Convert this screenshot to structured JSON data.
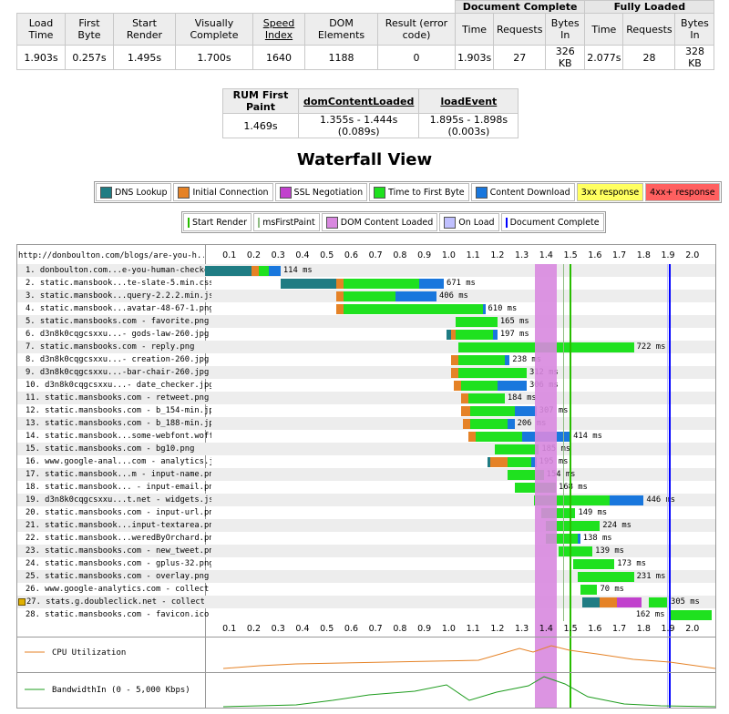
{
  "summary": {
    "group_document": "Document Complete",
    "group_fully": "Fully Loaded",
    "headers": [
      "Load Time",
      "First Byte",
      "Start Render",
      "Visually Complete",
      "Speed Index",
      "DOM Elements",
      "Result (error code)"
    ],
    "sub_headers": [
      "Time",
      "Requests",
      "Bytes In",
      "Time",
      "Requests",
      "Bytes In"
    ],
    "values": [
      "1.903s",
      "0.257s",
      "1.495s",
      "1.700s",
      "1640",
      "1188",
      "0",
      "1.903s",
      "27",
      "326 KB",
      "2.077s",
      "28",
      "328 KB"
    ]
  },
  "rum": {
    "headers": [
      "RUM First Paint",
      "domContentLoaded",
      "loadEvent"
    ],
    "values": [
      "1.469s",
      "1.355s - 1.444s (0.089s)",
      "1.895s - 1.898s (0.003s)"
    ]
  },
  "waterfall_title": "Waterfall View",
  "legend1": [
    {
      "label": "DNS Lookup",
      "color": "#1f7c83"
    },
    {
      "label": "Initial Connection",
      "color": "#e58226"
    },
    {
      "label": "SSL Negotiation",
      "color": "#c141cd"
    },
    {
      "label": "Time to First Byte",
      "color": "#1fe11f"
    },
    {
      "label": "Content Download",
      "color": "#1977dd"
    },
    {
      "label": "3xx response",
      "color": "#ffff60"
    },
    {
      "label": "4xx+ response",
      "color": "#ff6060"
    }
  ],
  "legend2": [
    {
      "label": "Start Render",
      "color": "#28bc00",
      "kind": "tick"
    },
    {
      "label": "msFirstPaint",
      "color": "#8fbc83",
      "kind": "tick"
    },
    {
      "label": "DOM Content Loaded",
      "color": "#d888df",
      "kind": "swatch"
    },
    {
      "label": "On Load",
      "color": "#c0c0ff",
      "kind": "swatch"
    },
    {
      "label": "Document Complete",
      "color": "#0000ff",
      "kind": "tick"
    }
  ],
  "page_url": "http://donboulton.com/blogs/are-you-h...",
  "axis_ticks": [
    "0.1",
    "0.2",
    "0.3",
    "0.4",
    "0.5",
    "0.6",
    "0.7",
    "0.8",
    "0.9",
    "1.0",
    "1.1",
    "1.2",
    "1.3",
    "1.4",
    "1.5",
    "1.6",
    "1.7",
    "1.8",
    "1.9",
    "2.0"
  ],
  "markers": {
    "dom_content_loaded": [
      1.355,
      1.444
    ],
    "start_render": 1.495,
    "ms_first_paint": 1.469,
    "on_load": [
      1.895,
      1.898
    ],
    "document_complete": 1.903
  },
  "requests": [
    {
      "label": "1. donboulton.com...e-you-human-checker",
      "ms": "114 ms",
      "phases": [
        [
          0.0,
          0.19,
          "#1f7c83"
        ],
        [
          0.19,
          0.22,
          "#e58226"
        ],
        [
          0.22,
          0.26,
          "#1fe11f"
        ],
        [
          0.26,
          0.31,
          "#1977dd"
        ]
      ]
    },
    {
      "label": "2. static.mansbook...te-slate-5.min.css",
      "ms": "671 ms",
      "phases": [
        [
          0.31,
          0.54,
          "#1f7c83"
        ],
        [
          0.54,
          0.57,
          "#e58226"
        ],
        [
          0.57,
          0.88,
          "#1fe11f"
        ],
        [
          0.88,
          0.98,
          "#1977dd"
        ]
      ]
    },
    {
      "label": "3. static.mansbook...query-2.2.2.min.js",
      "ms": "406 ms",
      "phases": [
        [
          0.54,
          0.57,
          "#e58226"
        ],
        [
          0.57,
          0.78,
          "#1fe11f"
        ],
        [
          0.78,
          0.95,
          "#1977dd"
        ]
      ]
    },
    {
      "label": "4. static.mansbook...avatar-48-67-1.png",
      "ms": "610 ms",
      "phases": [
        [
          0.54,
          0.57,
          "#e58226"
        ],
        [
          0.57,
          1.14,
          "#1fe11f"
        ],
        [
          1.14,
          1.15,
          "#1977dd"
        ]
      ]
    },
    {
      "label": "5. static.mansbooks.com - favorite.png",
      "ms": "165 ms",
      "phases": [
        [
          1.03,
          1.2,
          "#1fe11f"
        ]
      ]
    },
    {
      "label": "6. d3n8k0cqgcsxxu...- gods-law-260.jpg",
      "ms": "197 ms",
      "phases": [
        [
          0.99,
          1.01,
          "#1f7c83"
        ],
        [
          1.01,
          1.03,
          "#e58226"
        ],
        [
          1.03,
          1.18,
          "#1fe11f"
        ],
        [
          1.18,
          1.2,
          "#1977dd"
        ]
      ]
    },
    {
      "label": "7. static.mansbooks.com - reply.png",
      "ms": "722 ms",
      "phases": [
        [
          1.04,
          1.76,
          "#1fe11f"
        ]
      ]
    },
    {
      "label": "8. d3n8k0cqgcsxxu...- creation-260.jpg",
      "ms": "238 ms",
      "phases": [
        [
          1.01,
          1.04,
          "#e58226"
        ],
        [
          1.04,
          1.23,
          "#1fe11f"
        ],
        [
          1.23,
          1.25,
          "#1977dd"
        ]
      ]
    },
    {
      "label": "9. d3n8k0cqgcsxxu...-bar-chair-260.jpg",
      "ms": "312 ms",
      "phases": [
        [
          1.01,
          1.04,
          "#e58226"
        ],
        [
          1.04,
          1.32,
          "#1fe11f"
        ]
      ]
    },
    {
      "label": "10. d3n8k0cqgcsxxu...- date_checker.jpg",
      "ms": "306 ms",
      "phases": [
        [
          1.02,
          1.05,
          "#e58226"
        ],
        [
          1.05,
          1.2,
          "#1fe11f"
        ],
        [
          1.2,
          1.32,
          "#1977dd"
        ]
      ]
    },
    {
      "label": "11. static.mansbooks.com - retweet.png",
      "ms": "184 ms",
      "phases": [
        [
          1.05,
          1.08,
          "#e58226"
        ],
        [
          1.08,
          1.23,
          "#1fe11f"
        ]
      ]
    },
    {
      "label": "12. static.mansbooks.com - b_154-min.jpg",
      "ms": "307 ms",
      "phases": [
        [
          1.05,
          1.09,
          "#e58226"
        ],
        [
          1.09,
          1.27,
          "#1fe11f"
        ],
        [
          1.27,
          1.36,
          "#1977dd"
        ]
      ]
    },
    {
      "label": "13. static.mansbooks.com - b_188-min.jpg",
      "ms": "206 ms",
      "phases": [
        [
          1.06,
          1.09,
          "#e58226"
        ],
        [
          1.09,
          1.24,
          "#1fe11f"
        ],
        [
          1.24,
          1.27,
          "#1977dd"
        ]
      ]
    },
    {
      "label": "14. static.mansbook...some-webfont.woff2",
      "ms": "414 ms",
      "phases": [
        [
          1.08,
          1.11,
          "#e58226"
        ],
        [
          1.11,
          1.3,
          "#1fe11f"
        ],
        [
          1.3,
          1.5,
          "#1977dd"
        ]
      ]
    },
    {
      "label": "15. static.mansbooks.com - bg10.png",
      "ms": "185 ms",
      "phases": [
        [
          1.19,
          1.37,
          "#1fe11f"
        ]
      ]
    },
    {
      "label": "16. www.google-anal...com - analytics.js",
      "ms": "195 ms",
      "phases": [
        [
          1.16,
          1.17,
          "#1f7c83"
        ],
        [
          1.17,
          1.24,
          "#e58226"
        ],
        [
          1.24,
          1.34,
          "#1fe11f"
        ],
        [
          1.34,
          1.36,
          "#1977dd"
        ]
      ]
    },
    {
      "label": "17. static.mansbook...m - input-name.png",
      "ms": "154 ms",
      "phases": [
        [
          1.24,
          1.39,
          "#1fe11f"
        ]
      ]
    },
    {
      "label": "18. static.mansbook... - input-email.png",
      "ms": "168 ms",
      "phases": [
        [
          1.27,
          1.44,
          "#1fe11f"
        ]
      ]
    },
    {
      "label": "19. d3n8k0cqgcsxxu...t.net - widgets.js",
      "ms": "446 ms",
      "phases": [
        [
          1.35,
          1.66,
          "#1fe11f"
        ],
        [
          1.66,
          1.8,
          "#1977dd"
        ]
      ]
    },
    {
      "label": "20. static.mansbooks.com - input-url.png",
      "ms": "149 ms",
      "phases": [
        [
          1.38,
          1.52,
          "#1fe11f"
        ]
      ]
    },
    {
      "label": "21. static.mansbook...input-textarea.png",
      "ms": "224 ms",
      "phases": [
        [
          1.4,
          1.62,
          "#1fe11f"
        ]
      ]
    },
    {
      "label": "22. static.mansbook...weredByOrchard.png",
      "ms": "138 ms",
      "phases": [
        [
          1.4,
          1.53,
          "#1fe11f"
        ],
        [
          1.53,
          1.54,
          "#1977dd"
        ]
      ]
    },
    {
      "label": "23. static.mansbooks.com - new_tweet.png",
      "ms": "139 ms",
      "phases": [
        [
          1.45,
          1.59,
          "#1fe11f"
        ]
      ]
    },
    {
      "label": "24. static.mansbooks.com - gplus-32.png",
      "ms": "173 ms",
      "phases": [
        [
          1.51,
          1.68,
          "#1fe11f"
        ]
      ]
    },
    {
      "label": "25. static.mansbooks.com - overlay.png",
      "ms": "231 ms",
      "phases": [
        [
          1.53,
          1.76,
          "#1fe11f"
        ]
      ]
    },
    {
      "label": "26. www.google-analytics.com - collect",
      "ms": "70 ms",
      "phases": [
        [
          1.54,
          1.61,
          "#1fe11f"
        ]
      ]
    },
    {
      "label": "27. stats.g.doubleclick.net - collect",
      "ms": "305 ms",
      "lock": true,
      "phases": [
        [
          1.55,
          1.62,
          "#1f7c83"
        ],
        [
          1.62,
          1.69,
          "#e58226"
        ],
        [
          1.69,
          1.79,
          "#c141cd"
        ],
        [
          1.82,
          1.9,
          "#1fe11f"
        ]
      ]
    },
    {
      "label": "28. static.mansbooks.com - favicon.ico",
      "ms": "162 ms",
      "phases": [
        [
          1.91,
          2.08,
          "#1fe11f"
        ]
      ]
    }
  ],
  "cpu_label": "CPU Utilization",
  "bandwidth_label": "BandwidthIn (0 - 5,000 Kbps)"
}
